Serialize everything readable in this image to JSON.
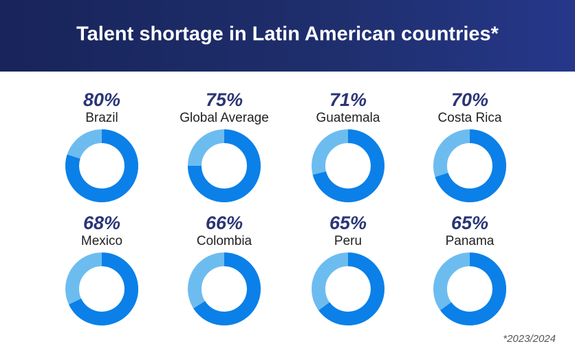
{
  "chart_data": {
    "type": "donut",
    "title": "Talent shortage in Latin American countries*",
    "note": "*2023/2024",
    "categories": [
      "Brazil",
      "Global Average",
      "Guatemala",
      "Costa Rica",
      "Mexico",
      "Colombia",
      "Peru",
      "Panama"
    ],
    "values": [
      80,
      75,
      71,
      70,
      68,
      66,
      65,
      65
    ],
    "value_labels": [
      "80%",
      "75%",
      "71%",
      "70%",
      "68%",
      "66%",
      "65%",
      "65%"
    ],
    "total": 100,
    "color": "#0b80e8",
    "track_color": "#6dbcf0"
  }
}
